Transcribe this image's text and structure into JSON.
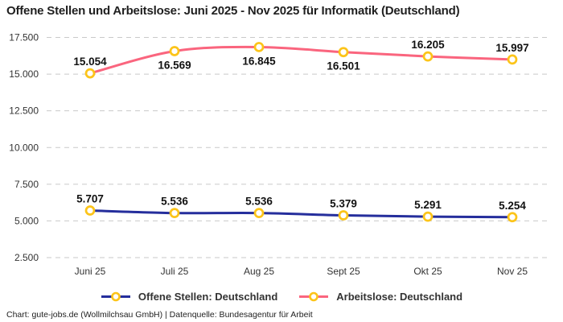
{
  "title": "Offene Stellen und Arbeitslose: Juni 2025 - Nov 2025 für Informatik (Deutschland)",
  "footer": "Chart: gute-jobs.de (Wollmilchsau GmbH) | Datenquelle: Bundesagentur für Arbeit",
  "colors": {
    "offene_stellen_line": "#252e9c",
    "arbeitslose_line": "#fa657e",
    "marker_ring": "#fcc419",
    "marker_fill": "#ffffff",
    "gridline": "#c9c9c9",
    "tick_text": "#333333",
    "label_text": "#111111"
  },
  "chart_data": {
    "type": "line",
    "title": "Offene Stellen und Arbeitslose: Juni 2025 - Nov 2025 für Informatik (Deutschland)",
    "categories": [
      "Juni 25",
      "Juli 25",
      "Aug 25",
      "Sept 25",
      "Okt 25",
      "Nov 25"
    ],
    "series": [
      {
        "name": "Offene Stellen: Deutschland",
        "color_key": "offene_stellen_line",
        "values": [
          5707,
          5536,
          5536,
          5379,
          5291,
          5254
        ],
        "value_labels": [
          "5.707",
          "5.536",
          "5.536",
          "5.379",
          "5.291",
          "5.254"
        ],
        "label_positions": [
          "above",
          "above",
          "above",
          "above",
          "above",
          "above"
        ]
      },
      {
        "name": "Arbeitslose: Deutschland",
        "color_key": "arbeitslose_line",
        "values": [
          15054,
          16569,
          16845,
          16501,
          16205,
          15997
        ],
        "value_labels": [
          "15.054",
          "16.569",
          "16.845",
          "16.501",
          "16.205",
          "15.997"
        ],
        "label_positions": [
          "above",
          "below",
          "below",
          "below",
          "above",
          "above"
        ]
      }
    ],
    "y_ticks": [
      {
        "value": 2500,
        "label": "2.500"
      },
      {
        "value": 5000,
        "label": "5.000"
      },
      {
        "value": 7500,
        "label": "7.500"
      },
      {
        "value": 10000,
        "label": "10.000"
      },
      {
        "value": 12500,
        "label": "12.500"
      },
      {
        "value": 15000,
        "label": "15.000"
      },
      {
        "value": 17500,
        "label": "17.500"
      }
    ],
    "ylim": [
      2500,
      17500
    ],
    "grid": "dashed-horizontal",
    "legend_position": "bottom"
  }
}
